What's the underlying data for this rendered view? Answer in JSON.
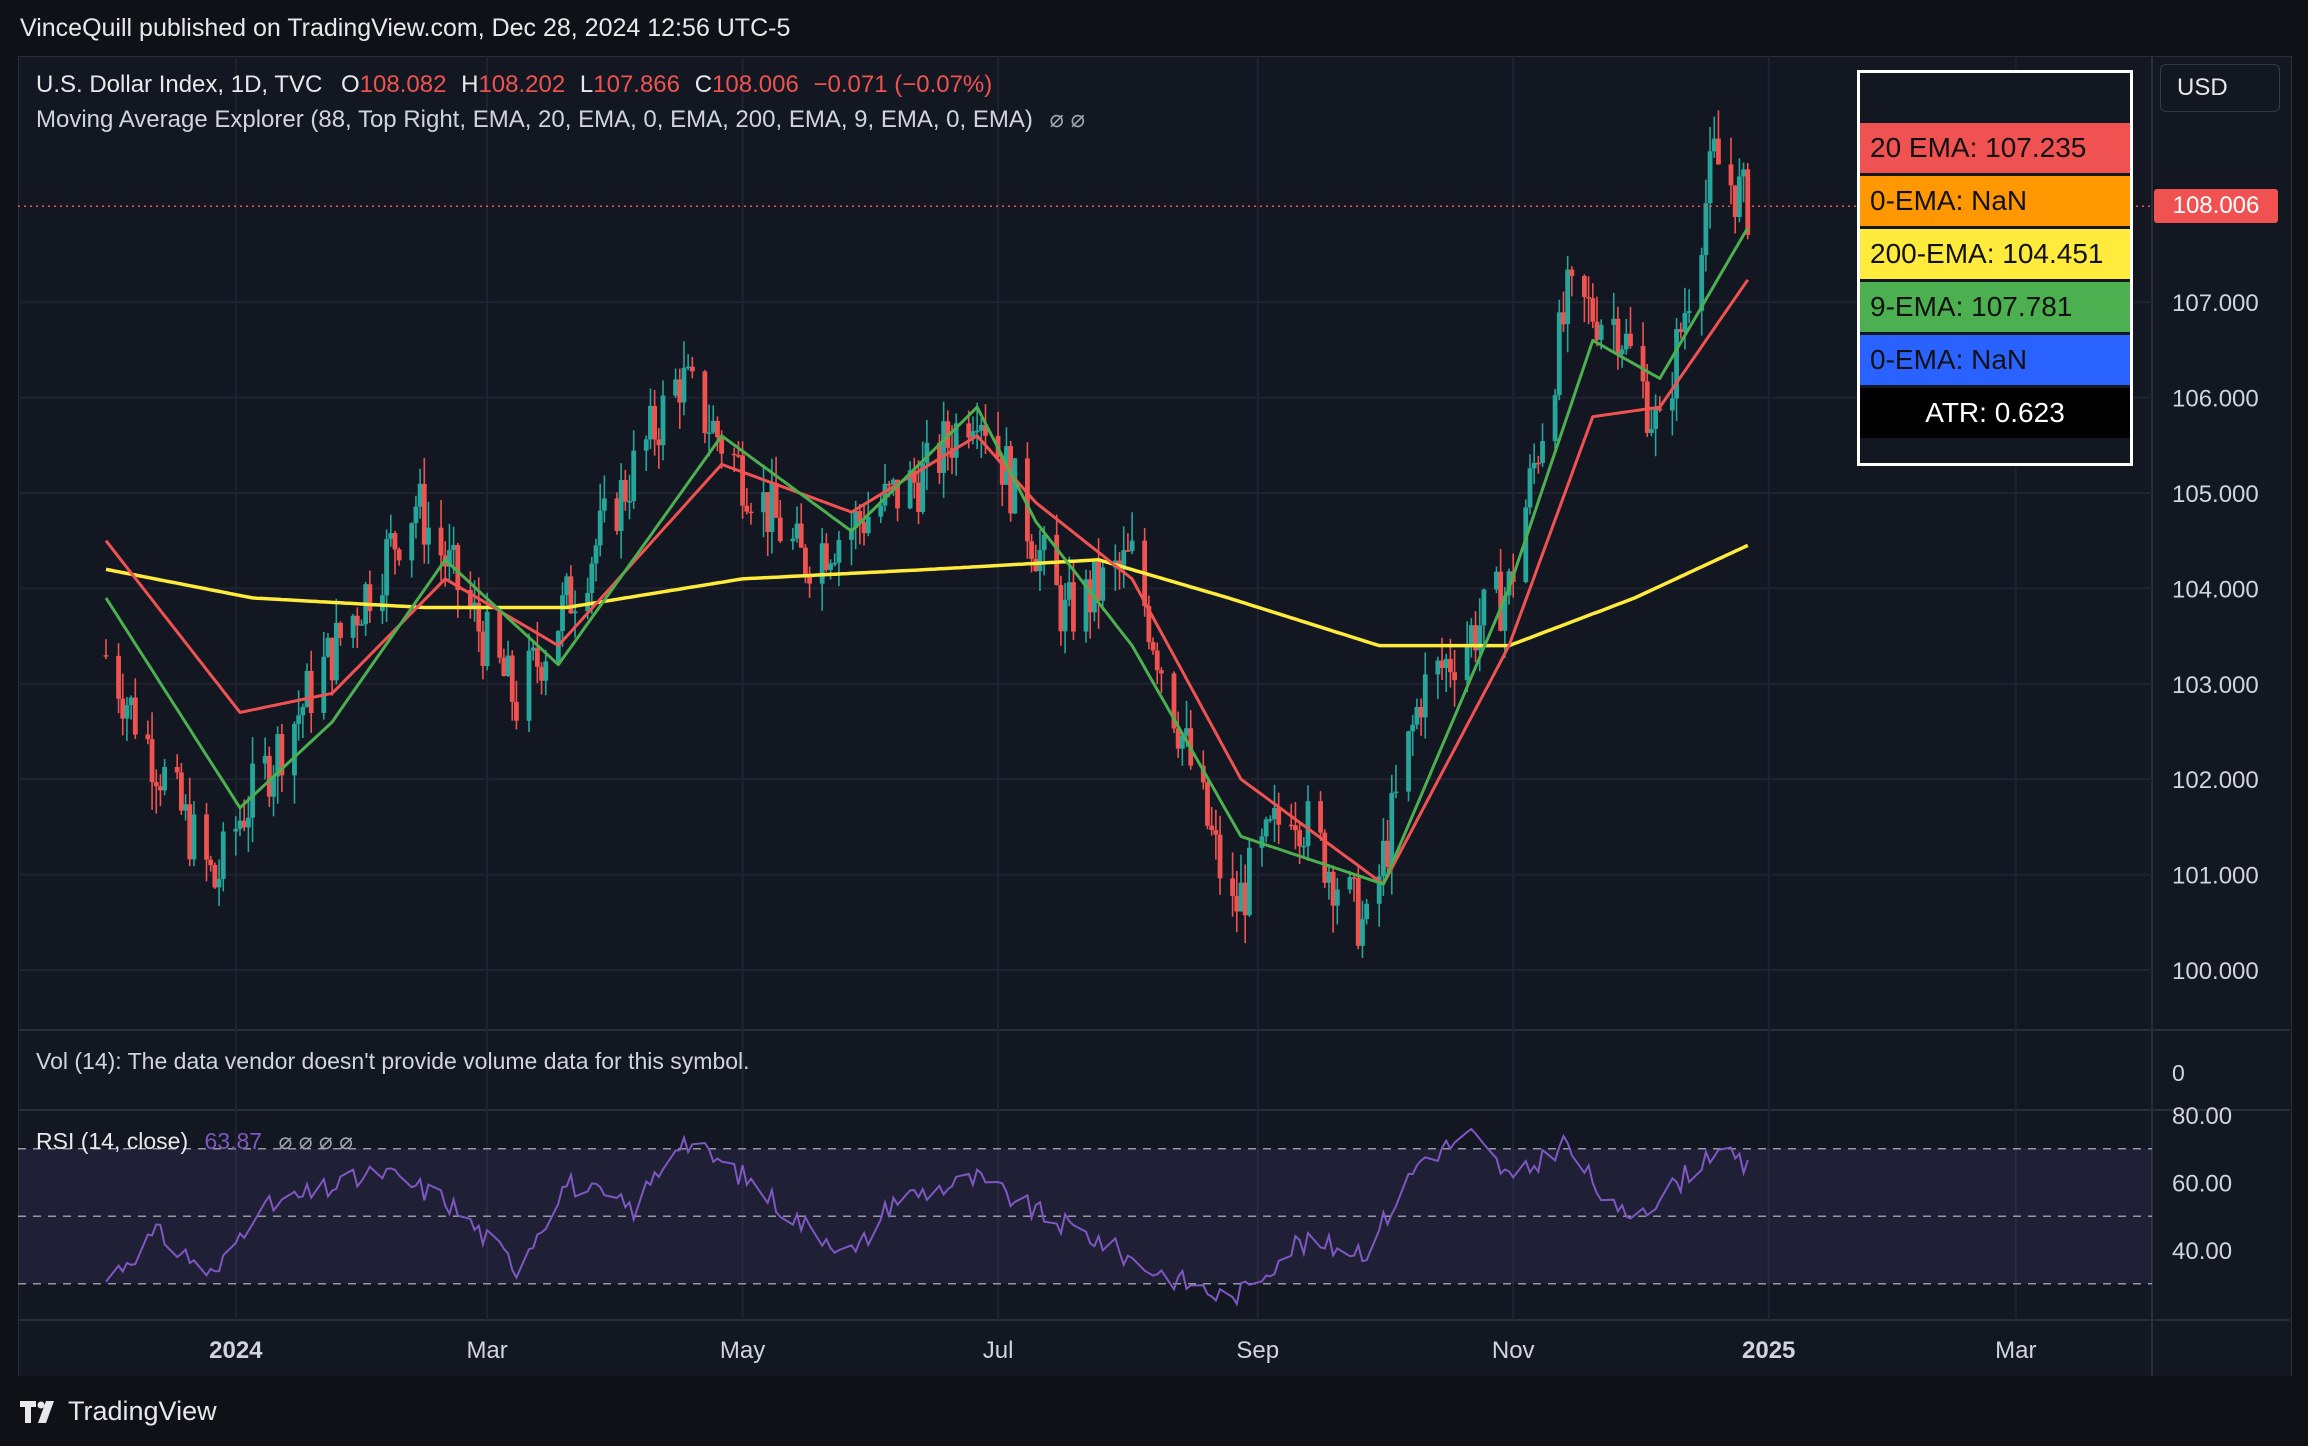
{
  "header": {
    "publisher": "VinceQuill published on TradingView.com, Dec 28, 2024 12:56 UTC-5"
  },
  "symbol": {
    "name": "U.S. Dollar Index, 1D, TVC",
    "o_label": "O",
    "o": "108.082",
    "h_label": "H",
    "h": "108.202",
    "l_label": "L",
    "l": "107.866",
    "c_label": "C",
    "c": "108.006",
    "change": "−0.071 (−0.07%)"
  },
  "indicator_line": "Moving Average Explorer (88, Top Right, EMA, 20, EMA, 0, EMA, 200, EMA, 9, EMA, 0, EMA)",
  "indicator_icons": "⌀ ⌀",
  "currency": "USD",
  "last_price": "108.006",
  "legend": [
    {
      "label": "20 EMA: 107.235",
      "bg": "#f05252",
      "fg": "#111111"
    },
    {
      "label": "0-EMA: NaN",
      "bg": "#ff9800",
      "fg": "#111111"
    },
    {
      "label": "200-EMA: 104.451",
      "bg": "#ffeb3b",
      "fg": "#111111"
    },
    {
      "label": "9-EMA: 107.781",
      "bg": "#4caf50",
      "fg": "#111111"
    },
    {
      "label": "0-EMA: NaN",
      "bg": "#2962ff",
      "fg": "#111111"
    },
    {
      "label": "ATR: 0.623",
      "bg": "#000000",
      "fg": "#ffffff"
    }
  ],
  "volume_text": "Vol (14): The data vendor doesn't provide volume data for this symbol.",
  "volume_zero": "0",
  "rsi": {
    "label": "RSI (14, close)",
    "value": "63.87",
    "icons": "⌀ ⌀ ⌀ ⌀"
  },
  "footer": {
    "brand": "TradingView"
  },
  "colors": {
    "up": "#26a69a",
    "down": "#ef5350",
    "ema20": "#f05252",
    "ema200": "#ffeb3b",
    "ema9": "#4caf50",
    "rsi": "#7e57c2",
    "bg": "#131722"
  },
  "chart_data": [
    {
      "type": "candlestick",
      "title": "U.S. Dollar Index, 1D, TVC",
      "x_tick_labels": [
        "2024",
        "Mar",
        "May",
        "Jul",
        "Sep",
        "Nov",
        "2025",
        "Mar"
      ],
      "y_ticks": [
        "100.000",
        "101.000",
        "102.000",
        "103.000",
        "104.000",
        "105.000",
        "106.000",
        "107.000"
      ],
      "ylim": [
        99.3,
        109.7
      ],
      "price_anchors": {
        "x": [
          "2023-12-01",
          "2023-12-27",
          "2024-01-02",
          "2024-02-13",
          "2024-03-08",
          "2024-04-16",
          "2024-05-15",
          "2024-06-14",
          "2024-06-26",
          "2024-07-17",
          "2024-08-02",
          "2024-08-26",
          "2024-09-09",
          "2024-09-27",
          "2024-10-10",
          "2024-10-31",
          "2024-11-14",
          "2024-11-26",
          "2024-12-06",
          "2024-12-19",
          "2024-12-27"
        ],
        "y": [
          103.3,
          100.9,
          101.6,
          104.9,
          102.8,
          106.2,
          104.3,
          105.2,
          106.0,
          103.7,
          104.3,
          100.6,
          101.8,
          100.4,
          102.9,
          104.0,
          107.0,
          106.8,
          105.6,
          108.5,
          108.006
        ]
      },
      "ema20_anchors": {
        "x": [
          "2023-12-01",
          "2024-01-02",
          "2024-01-24",
          "2024-02-20",
          "2024-03-18",
          "2024-04-26",
          "2024-05-27",
          "2024-06-26",
          "2024-07-10",
          "2024-08-02",
          "2024-08-28",
          "2024-10-01",
          "2024-10-31",
          "2024-11-20",
          "2024-12-06",
          "2024-12-27"
        ],
        "y": [
          104.5,
          102.7,
          102.9,
          104.1,
          103.4,
          105.3,
          104.8,
          105.6,
          104.9,
          104.1,
          102.0,
          100.9,
          103.4,
          105.8,
          105.9,
          107.235
        ]
      },
      "ema9_anchors": {
        "x": [
          "2023-12-01",
          "2024-01-02",
          "2024-01-24",
          "2024-02-20",
          "2024-03-18",
          "2024-04-26",
          "2024-05-27",
          "2024-06-26",
          "2024-07-10",
          "2024-08-02",
          "2024-08-28",
          "2024-10-01",
          "2024-10-31",
          "2024-11-20",
          "2024-12-06",
          "2024-12-27"
        ],
        "y": [
          103.9,
          101.7,
          102.6,
          104.3,
          103.2,
          105.6,
          104.6,
          105.9,
          104.7,
          103.4,
          101.4,
          100.9,
          104.0,
          106.6,
          106.2,
          107.781
        ]
      },
      "ema200_anchors": {
        "x": [
          "2023-12-01",
          "2024-01-05",
          "2024-02-15",
          "2024-03-20",
          "2024-05-01",
          "2024-06-15",
          "2024-07-25",
          "2024-08-25",
          "2024-09-30",
          "2024-10-31",
          "2024-11-30",
          "2024-12-27"
        ],
        "y": [
          104.2,
          103.9,
          103.8,
          103.8,
          104.1,
          104.2,
          104.3,
          103.9,
          103.4,
          103.4,
          103.9,
          104.451
        ]
      },
      "series": [
        {
          "name": "20 EMA"
        },
        {
          "name": "200-EMA"
        },
        {
          "name": "9-EMA"
        }
      ]
    },
    {
      "type": "line",
      "title": "RSI (14, close)",
      "y_ticks": [
        "40.00",
        "60.00",
        "80.00"
      ],
      "ylim": [
        22,
        81
      ],
      "bands": {
        "upper": 70,
        "middle": 50,
        "lower": 30
      },
      "x": [
        "2023-12-01",
        "2023-12-13",
        "2023-12-27",
        "2024-01-05",
        "2024-01-25",
        "2024-02-05",
        "2024-02-20",
        "2024-03-08",
        "2024-03-20",
        "2024-04-05",
        "2024-04-16",
        "2024-05-01",
        "2024-05-15",
        "2024-05-28",
        "2024-06-06",
        "2024-06-26",
        "2024-07-12",
        "2024-07-25",
        "2024-08-05",
        "2024-08-26",
        "2024-09-10",
        "2024-09-27",
        "2024-10-10",
        "2024-10-22",
        "2024-11-01",
        "2024-11-13",
        "2024-11-26",
        "2024-12-06",
        "2024-12-19",
        "2024-12-27"
      ],
      "y": [
        31,
        45,
        32,
        51,
        59,
        63,
        55,
        35,
        60,
        52,
        73,
        62,
        48,
        39,
        55,
        61,
        50,
        43,
        35,
        25,
        42,
        40,
        67,
        74,
        60,
        72,
        50,
        55,
        70,
        63.87
      ]
    }
  ]
}
